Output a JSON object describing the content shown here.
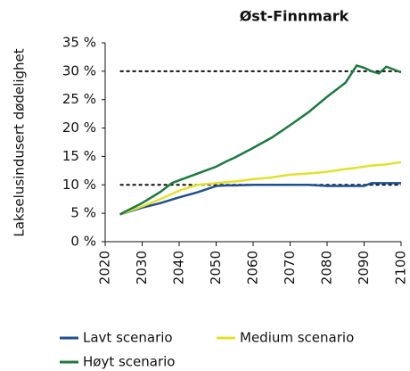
{
  "chart_data": {
    "type": "line",
    "title": "Øst-Finnmark",
    "y_label": "Lakselusindusert dødelighet",
    "x": [
      2024,
      2030,
      2035,
      2038,
      2040,
      2045,
      2050,
      2053,
      2055,
      2060,
      2065,
      2070,
      2075,
      2080,
      2085,
      2088,
      2090,
      2092,
      2094,
      2096,
      2100
    ],
    "series": [
      {
        "name": "Lavt scenario",
        "color": "#1d4f91",
        "values": [
          4.8,
          6.0,
          6.8,
          7.4,
          7.8,
          8.7,
          9.8,
          9.9,
          9.9,
          10,
          10,
          10,
          10,
          9.8,
          9.8,
          9.8,
          9.8,
          10.3,
          10.3,
          10.3,
          10.3
        ]
      },
      {
        "name": "Medium scenario",
        "color": "#e4e02a",
        "values": [
          4.8,
          6.2,
          7.5,
          8.4,
          9.0,
          10.0,
          10.3,
          10.5,
          10.6,
          11.0,
          11.3,
          11.8,
          12.0,
          12.3,
          12.8,
          13.0,
          13.2,
          13.4,
          13.5,
          13.6,
          14.0
        ]
      },
      {
        "name": "Høyt scenario",
        "color": "#1b7a3e",
        "values": [
          4.8,
          6.8,
          8.8,
          10.3,
          10.8,
          12.0,
          13.2,
          14.2,
          14.8,
          16.5,
          18.3,
          20.5,
          22.8,
          25.5,
          28.0,
          31.0,
          30.6,
          30.0,
          29.6,
          30.8,
          29.8
        ]
      }
    ],
    "hlines": [
      30,
      10
    ],
    "xlim": [
      2020,
      2100
    ],
    "xticks": [
      2020,
      2030,
      2040,
      2050,
      2060,
      2070,
      2080,
      2090,
      2100
    ],
    "ylim": [
      0,
      35
    ],
    "yticks": [
      {
        "value": 0,
        "label": "0 %"
      },
      {
        "value": 5,
        "label": "5 %"
      },
      {
        "value": 10,
        "label": "10 %"
      },
      {
        "value": 15,
        "label": "15 %"
      },
      {
        "value": 20,
        "label": "20 %"
      },
      {
        "value": 25,
        "label": "25 %"
      },
      {
        "value": 30,
        "label": "30 %"
      },
      {
        "value": 35,
        "label": "35 %"
      }
    ],
    "grid": false
  }
}
